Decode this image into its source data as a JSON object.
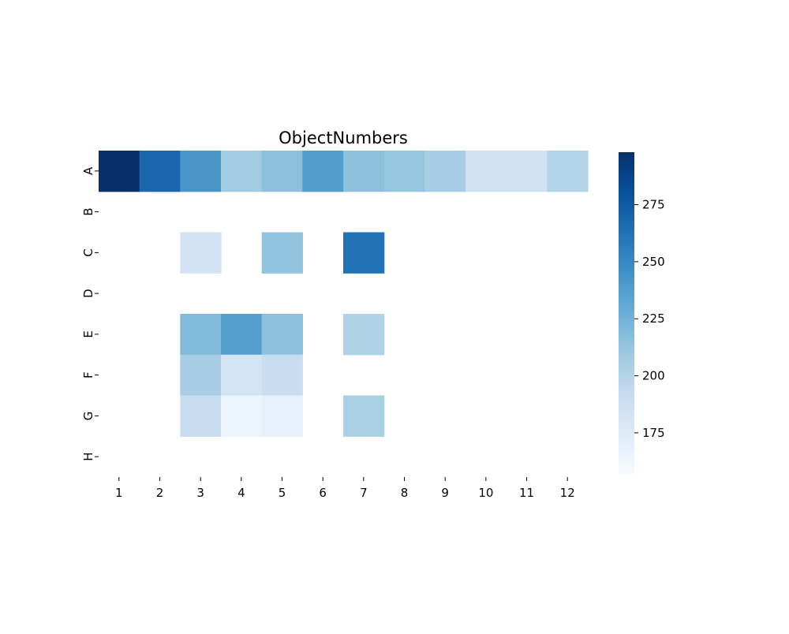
{
  "chart_data": {
    "type": "heatmap",
    "title": "ObjectNumbers",
    "xlabel": "",
    "ylabel": "",
    "x_categories": [
      "1",
      "2",
      "3",
      "4",
      "5",
      "6",
      "7",
      "8",
      "9",
      "10",
      "11",
      "12"
    ],
    "y_categories": [
      "A",
      "B",
      "C",
      "D",
      "E",
      "F",
      "G",
      "H"
    ],
    "values": [
      [
        298,
        268,
        242,
        208,
        216,
        238,
        216,
        213,
        206,
        185,
        186,
        201
      ],
      [
        null,
        null,
        null,
        null,
        null,
        null,
        null,
        null,
        null,
        null,
        null,
        null
      ],
      [
        null,
        null,
        183,
        null,
        214,
        null,
        262,
        null,
        null,
        null,
        null,
        null
      ],
      [
        null,
        null,
        null,
        null,
        null,
        null,
        null,
        null,
        null,
        null,
        null,
        null
      ],
      [
        null,
        null,
        220,
        237,
        216,
        null,
        202,
        null,
        null,
        null,
        null,
        null
      ],
      [
        null,
        null,
        206,
        182,
        190,
        null,
        null,
        null,
        null,
        null,
        null,
        null
      ],
      [
        null,
        null,
        191,
        164,
        168,
        null,
        205,
        null,
        null,
        null,
        null,
        null
      ],
      [
        null,
        null,
        null,
        null,
        null,
        null,
        null,
        null,
        null,
        null,
        null,
        null
      ]
    ],
    "colorbar": {
      "min": 157,
      "max": 298,
      "ticks": [
        175,
        200,
        225,
        250,
        275
      ],
      "colormap": "Blues"
    },
    "grid": false,
    "legend": "colorbar right"
  }
}
